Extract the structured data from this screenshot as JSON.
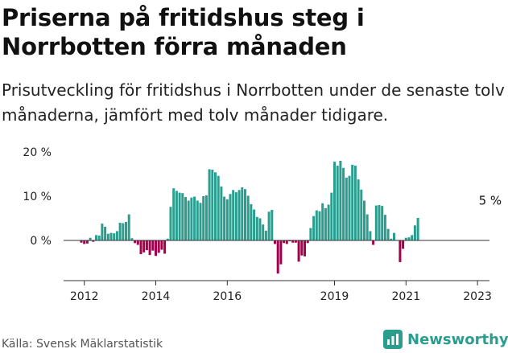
{
  "title": "Priserna på fritidshus steg i Norrbotten förra månaden",
  "subtitle": "Prisutveckling för fritidshus i Norrbotten under de senaste tolv månaderna, jämfört med tolv månader tidigare.",
  "source": "Källa: Svensk Mäklarstatistik",
  "brand": "Newsworthy",
  "colors": {
    "positive": "#2a9d8f",
    "negative": "#a3004d",
    "brand": "#2a9d8f"
  },
  "chart_data": {
    "type": "bar",
    "title": "Priserna på fritidshus steg i Norrbotten förra månaden",
    "xlabel": "",
    "ylabel": "",
    "x_start": "2011-12",
    "frequency": "monthly",
    "ylim": [
      -8,
      20
    ],
    "yticks": [
      0,
      10,
      20
    ],
    "ytick_labels": [
      "0 %",
      "10 %",
      "20 %"
    ],
    "xticks": [
      "2012",
      "2014",
      "2016",
      "2019",
      "2021",
      "2023"
    ],
    "grid": false,
    "annotation": {
      "text": "5 %",
      "x": "2023-05",
      "y": 5
    },
    "values": [
      -0.5,
      -0.8,
      -0.7,
      0.6,
      -0.3,
      1.2,
      1.1,
      3.8,
      3.1,
      1.5,
      1.7,
      1.6,
      2.1,
      4.0,
      3.9,
      4.2,
      5.9,
      0.5,
      -0.6,
      -1.0,
      -3.1,
      -2.7,
      -2.2,
      -3.3,
      -2.3,
      -3.5,
      -2.8,
      -2.1,
      -3.0,
      0.4,
      7.6,
      11.8,
      11.2,
      10.8,
      10.7,
      9.8,
      9.0,
      9.7,
      9.9,
      9.0,
      8.5,
      10.0,
      10.2,
      16.1,
      16.0,
      15.4,
      14.6,
      12.2,
      9.9,
      9.3,
      10.5,
      11.4,
      10.9,
      11.4,
      12.0,
      11.6,
      10.1,
      8.2,
      7.0,
      5.3,
      5.0,
      3.6,
      2.2,
      6.5,
      6.9,
      -0.8,
      -7.5,
      -5.4,
      -0.6,
      -0.8,
      -0.2,
      -0.5,
      -0.5,
      -4.8,
      -3.4,
      -3.6,
      -0.6,
      2.8,
      5.5,
      6.8,
      6.6,
      8.4,
      7.3,
      8.1,
      10.8,
      17.8,
      16.9,
      18.0,
      16.4,
      14.2,
      14.6,
      17.1,
      16.9,
      13.8,
      11.5,
      9.0,
      5.9,
      2.1,
      -1.0,
      7.9,
      8.0,
      7.8,
      5.8,
      2.6,
      0.4,
      1.7,
      0.1,
      -4.9,
      -1.9,
      0.6,
      0.7,
      1.2,
      3.4,
      5.1
    ]
  }
}
